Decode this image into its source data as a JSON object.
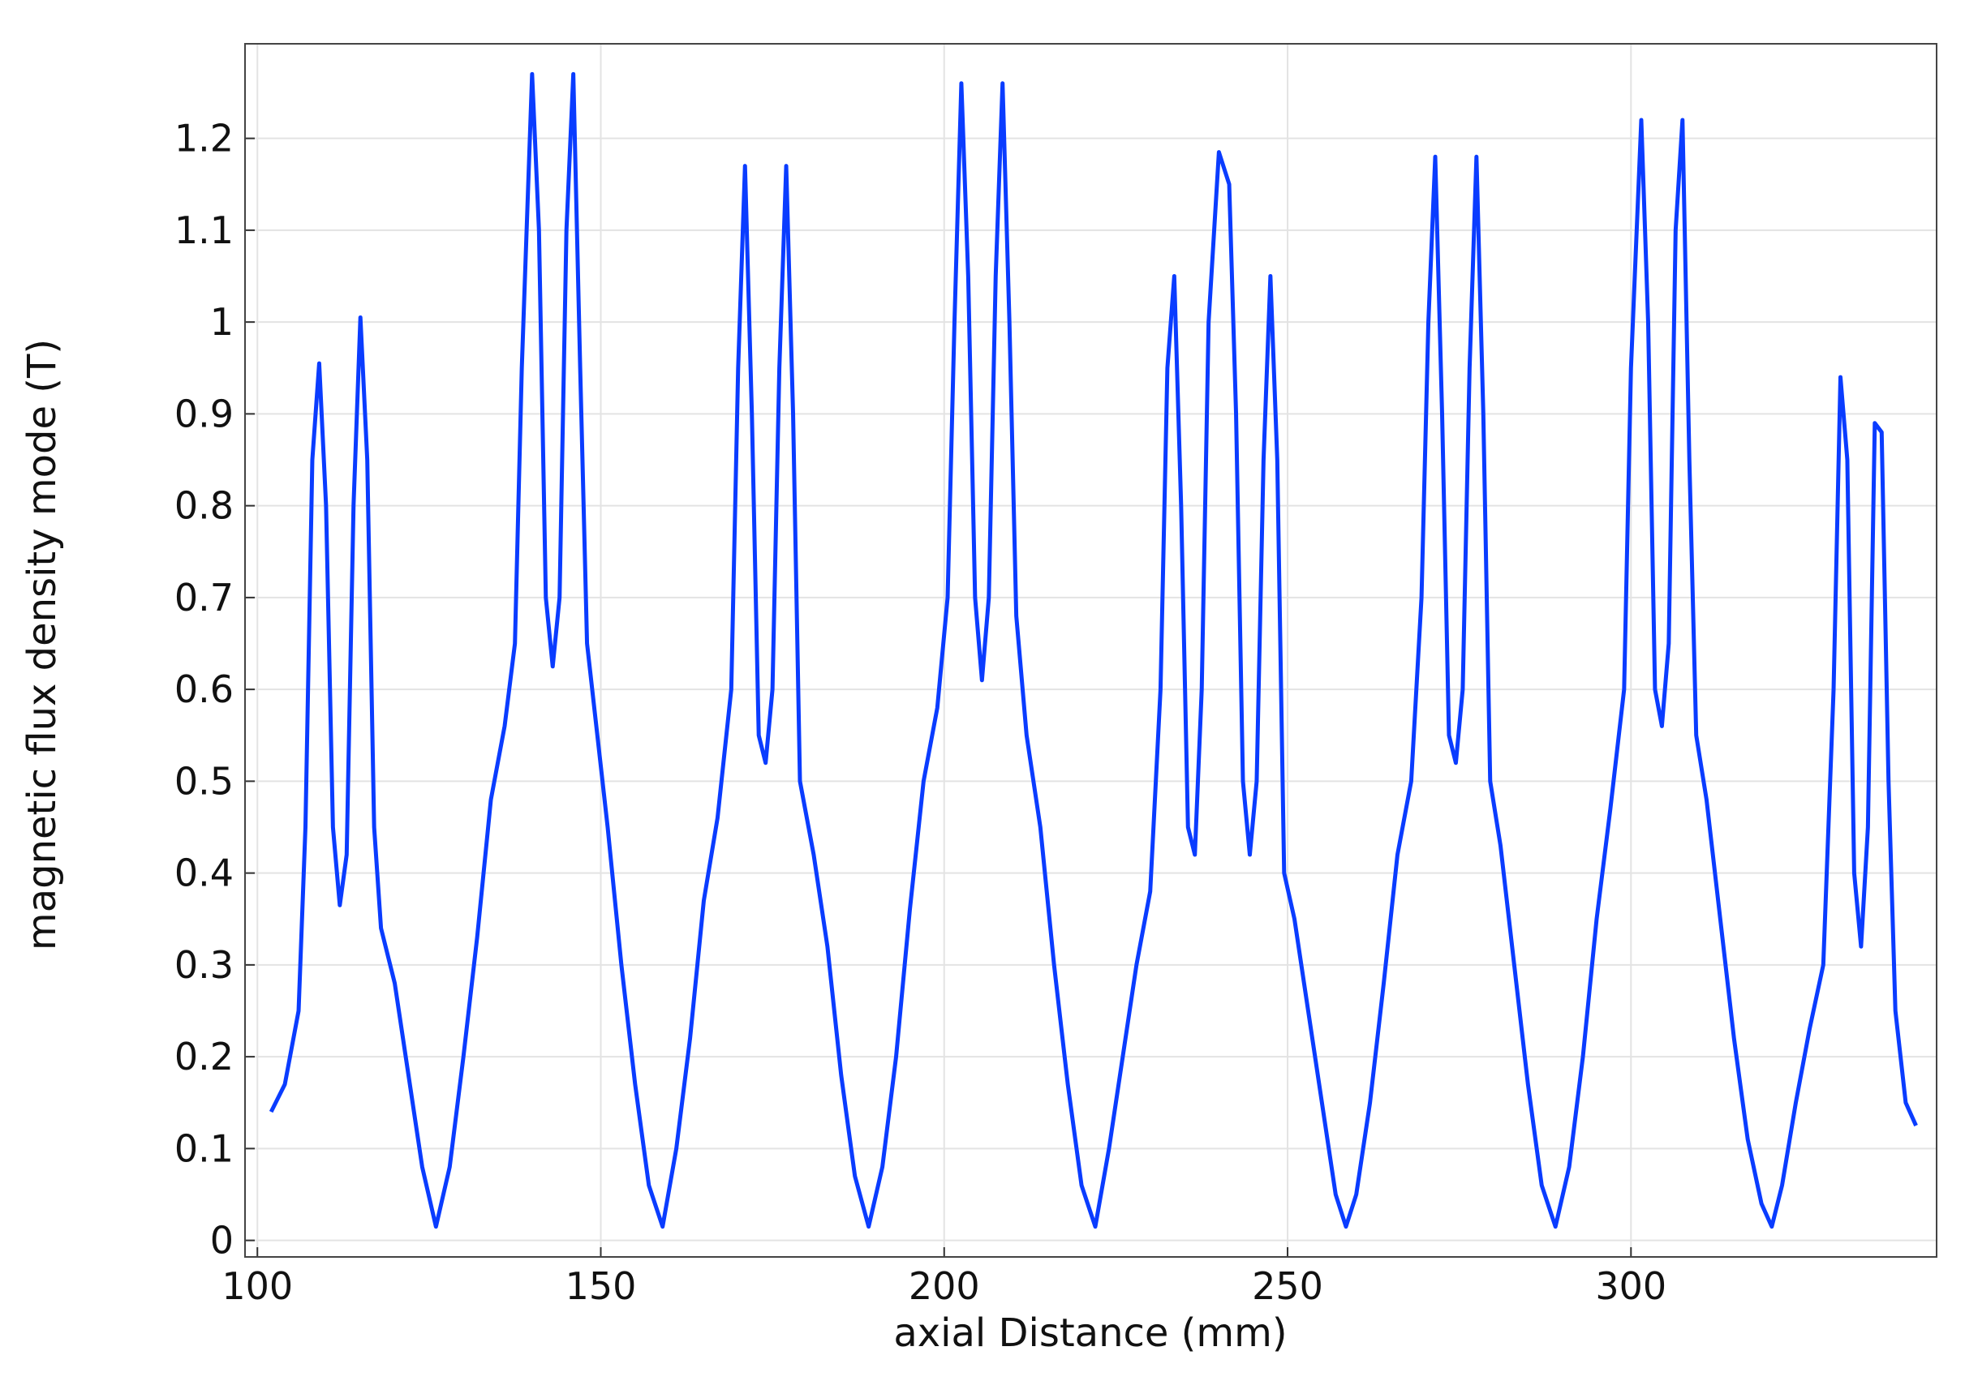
{
  "chart_data": {
    "type": "line",
    "xlabel": "axial Distance (mm)",
    "ylabel": "magnetic flux density mode (T)",
    "xlim": [
      98.2,
      344.5
    ],
    "ylim": [
      -0.018,
      1.303
    ],
    "xticks": [
      100,
      150,
      200,
      250,
      300
    ],
    "yticks": [
      0,
      0.1,
      0.2,
      0.3,
      0.4,
      0.5,
      0.6,
      0.7,
      0.8,
      0.9,
      1,
      1.1,
      1.2
    ],
    "grid": true,
    "x": [
      102,
      104,
      106,
      107,
      108,
      109,
      110,
      111,
      112,
      113,
      114,
      115,
      116,
      117,
      118,
      120,
      122,
      124,
      126,
      128,
      130,
      132,
      134,
      136,
      137.5,
      138.5,
      140,
      141,
      142,
      143,
      144,
      145,
      146,
      147,
      148,
      149.5,
      151,
      153,
      155,
      157,
      159,
      161,
      163,
      165,
      167,
      169,
      170,
      171,
      172,
      173,
      174,
      175,
      176,
      177,
      178,
      179,
      181,
      183,
      185,
      187,
      189,
      191,
      193,
      195,
      197,
      199,
      200.5,
      201.5,
      202.5,
      203.5,
      204.5,
      205.5,
      206.5,
      207.5,
      208.5,
      209.5,
      210.5,
      212,
      214,
      216,
      218,
      220,
      222,
      224,
      226,
      228,
      230,
      231.5,
      232.5,
      233.5,
      234.5,
      235.5,
      236.5,
      237.5,
      238.5,
      240,
      241.5,
      242.5,
      243.5,
      244.5,
      245.5,
      246.5,
      247.5,
      248.5,
      249.5,
      251,
      253,
      255,
      257,
      258.5,
      260,
      262,
      264,
      266,
      268,
      269.5,
      270.5,
      271.5,
      272.5,
      273.5,
      274.5,
      275.5,
      276.5,
      277.5,
      278.5,
      279.5,
      281,
      283,
      285,
      287,
      289,
      291,
      293,
      295,
      297,
      299,
      300,
      301.5,
      302.5,
      303.5,
      304.5,
      305.5,
      306.5,
      307.5,
      308.5,
      309.5,
      311,
      313,
      315,
      317,
      319,
      320.5,
      322,
      324,
      326,
      328,
      329.5,
      330.5,
      331.5,
      332.5,
      333.5,
      334.5,
      335.5,
      336.5,
      337.5,
      338.5,
      340,
      341.5
    ],
    "series": [
      {
        "color": "#0a3cff",
        "values": [
          0.14,
          0.17,
          0.25,
          0.45,
          0.85,
          0.955,
          0.8,
          0.45,
          0.365,
          0.42,
          0.8,
          1.005,
          0.85,
          0.45,
          0.34,
          0.28,
          0.18,
          0.08,
          0.015,
          0.08,
          0.2,
          0.33,
          0.48,
          0.56,
          0.65,
          0.95,
          1.27,
          1.1,
          0.7,
          0.625,
          0.7,
          1.1,
          1.27,
          0.95,
          0.65,
          0.55,
          0.45,
          0.3,
          0.17,
          0.06,
          0.015,
          0.1,
          0.22,
          0.37,
          0.46,
          0.6,
          0.95,
          1.17,
          0.9,
          0.55,
          0.52,
          0.6,
          0.95,
          1.17,
          0.9,
          0.5,
          0.42,
          0.32,
          0.18,
          0.07,
          0.015,
          0.08,
          0.2,
          0.36,
          0.5,
          0.58,
          0.7,
          1.0,
          1.26,
          1.05,
          0.7,
          0.61,
          0.7,
          1.05,
          1.26,
          1.0,
          0.68,
          0.55,
          0.45,
          0.3,
          0.17,
          0.06,
          0.015,
          0.1,
          0.2,
          0.3,
          0.38,
          0.6,
          0.95,
          1.05,
          0.8,
          0.45,
          0.42,
          0.6,
          1.0,
          1.185,
          1.15,
          0.9,
          0.5,
          0.42,
          0.5,
          0.85,
          1.05,
          0.85,
          0.4,
          0.35,
          0.25,
          0.15,
          0.05,
          0.015,
          0.05,
          0.15,
          0.28,
          0.42,
          0.5,
          0.7,
          1.0,
          1.18,
          0.9,
          0.55,
          0.52,
          0.6,
          0.95,
          1.18,
          0.9,
          0.5,
          0.43,
          0.3,
          0.17,
          0.06,
          0.015,
          0.08,
          0.2,
          0.35,
          0.47,
          0.6,
          0.95,
          1.22,
          1.0,
          0.6,
          0.56,
          0.65,
          1.1,
          1.22,
          0.85,
          0.55,
          0.48,
          0.35,
          0.22,
          0.11,
          0.04,
          0.015,
          0.06,
          0.15,
          0.23,
          0.3,
          0.6,
          0.94,
          0.85,
          0.4,
          0.32,
          0.45,
          0.89,
          0.88,
          0.5,
          0.25,
          0.15,
          0.125
        ]
      }
    ]
  }
}
